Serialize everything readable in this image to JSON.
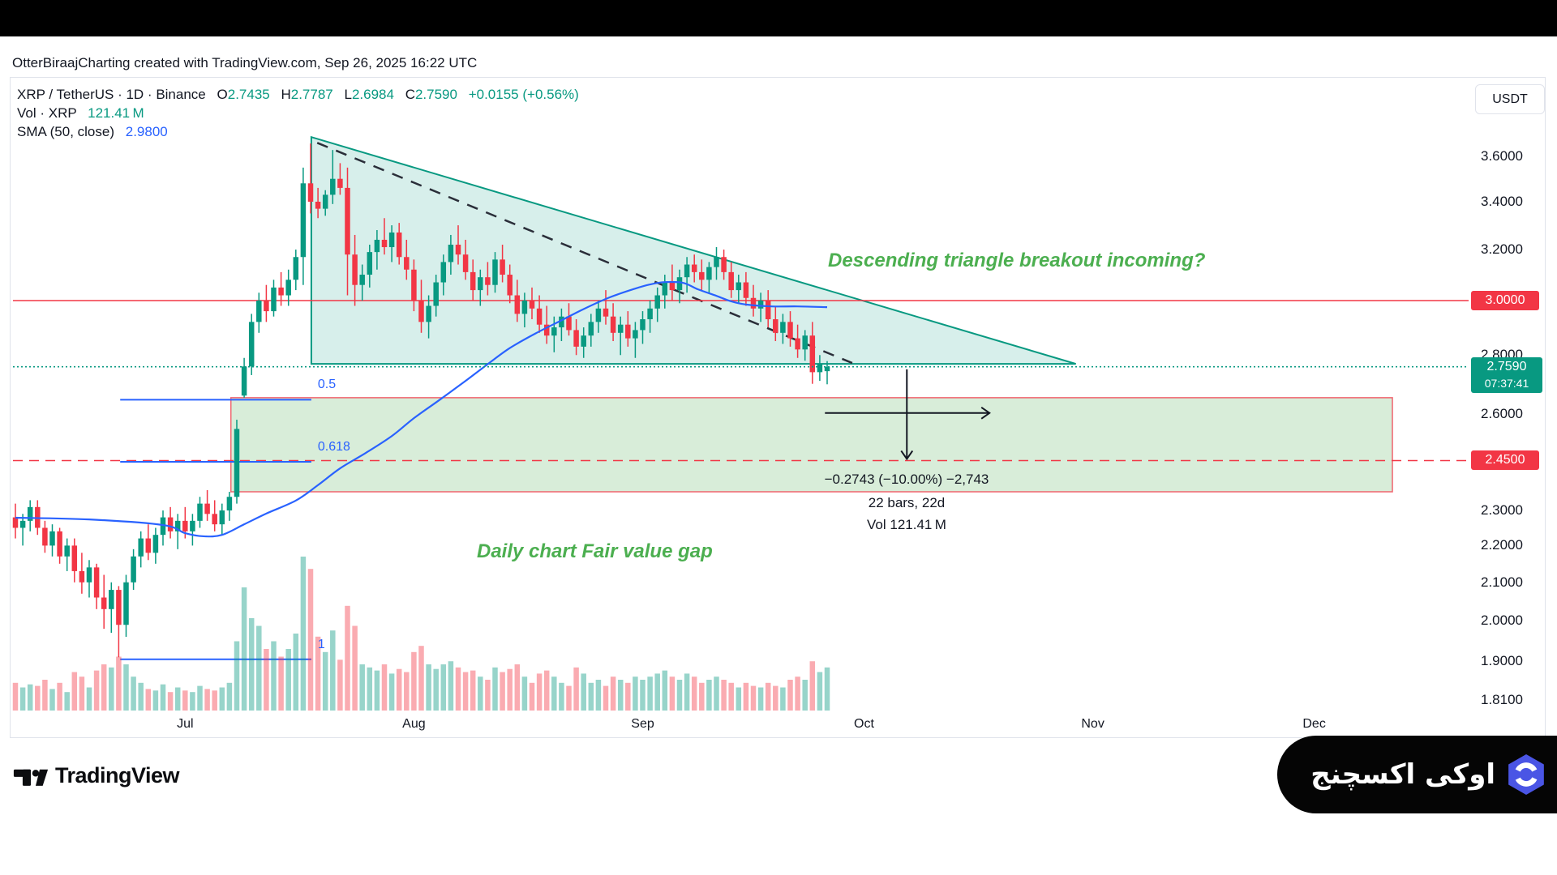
{
  "page": {
    "attribution": "OtterBiraajCharting created with TradingView.com, Sep 26, 2025 16:22 UTC"
  },
  "toolbar": {
    "currency_button": "USDT"
  },
  "legend": {
    "symbol": "XRP / TetherUS · 1D · Binance",
    "ohlc": [
      {
        "k": "O",
        "v": "2.7435"
      },
      {
        "k": "H",
        "v": "2.7787"
      },
      {
        "k": "L",
        "v": "2.6984"
      },
      {
        "k": "C",
        "v": "2.7590"
      }
    ],
    "change": "+0.0155 (+0.56%)",
    "vol_label": "Vol · XRP",
    "vol_value": "121.41 M",
    "sma_label": "SMA (50, close)",
    "sma_value": "2.9800"
  },
  "annotations": {
    "triangle_note": "Descending triangle breakout incoming?",
    "fvg_note": "Daily chart Fair value gap",
    "measure_line1": "−0.2743 (−10.00%) −2,743",
    "measure_line2": "22 bars, 22d",
    "measure_line3": "Vol 121.41 M"
  },
  "badges": {
    "resistance": "3.0000",
    "last_price": "2.7590",
    "countdown": "07:37:41",
    "target": "2.4500"
  },
  "branding": {
    "tradingview": "TradingView",
    "exchange_name": "اوکی اکسچنج"
  },
  "colors": {
    "up": "#089981",
    "down": "#f23645",
    "sma": "#2962ff",
    "fib": "#2962ff",
    "annotation_green": "#4caf50",
    "badge_red": "#f23645",
    "badge_green": "#089981",
    "dashed_trendline": "#2a2e39",
    "text": "#131722"
  },
  "chart_data": {
    "type": "candlestick",
    "symbol": "XRP/USDT",
    "timeframe": "1D",
    "y_axis": {
      "scale": "log",
      "tick_labels": [
        "3.6000",
        "3.4000",
        "3.2000",
        "2.8000",
        "2.6000",
        "2.3000",
        "2.2000",
        "2.1000",
        "2.0000",
        "1.9000",
        "1.8100"
      ]
    },
    "x_axis": {
      "months": [
        {
          "label": "Jul",
          "bar": 23
        },
        {
          "label": "Aug",
          "bar": 54
        },
        {
          "label": "Sep",
          "bar": 85
        },
        {
          "label": "Oct",
          "bar": 115
        },
        {
          "label": "Nov",
          "bar": 146
        },
        {
          "label": "Dec",
          "bar": 176
        }
      ]
    },
    "levels": {
      "resistance": 3.0,
      "target": 2.45,
      "last_close": 2.759
    },
    "fvg": {
      "top": 2.653,
      "bottom": 2.355,
      "bar_start": 29.2,
      "bar_end": 186.6
    },
    "triangle": {
      "apex_bar": 40.1,
      "apex_price": 3.69,
      "base_price": 2.769,
      "end_bar": 143.7
    },
    "trendline_dashed": {
      "from": [
        40.9,
        3.663
      ],
      "to": [
        113.4,
        2.772
      ]
    },
    "fib": {
      "bar_start": 14.2,
      "bar_end": 40.1,
      "levels": [
        {
          "label": "0.5",
          "price": 2.646
        },
        {
          "label": "0.618",
          "price": 2.446
        },
        {
          "label": "1",
          "price": 1.905
        }
      ]
    },
    "range_tool": {
      "vertical": {
        "bar": 120.8,
        "from_price": 2.75,
        "to_price": 2.455
      },
      "horizontal": {
        "price": 2.602,
        "from_bar": 109.7,
        "to_bar": 132
      }
    },
    "candles": [
      [
        2.28,
        2.32,
        2.22,
        2.25,
        0.18
      ],
      [
        2.25,
        2.29,
        2.2,
        2.27,
        0.15
      ],
      [
        2.27,
        2.33,
        2.24,
        2.31,
        0.17
      ],
      [
        2.31,
        2.33,
        2.23,
        2.25,
        0.16
      ],
      [
        2.25,
        2.27,
        2.18,
        2.2,
        0.2
      ],
      [
        2.2,
        2.26,
        2.17,
        2.24,
        0.14
      ],
      [
        2.24,
        2.25,
        2.15,
        2.17,
        0.18
      ],
      [
        2.17,
        2.22,
        2.13,
        2.2,
        0.12
      ],
      [
        2.2,
        2.22,
        2.1,
        2.13,
        0.25
      ],
      [
        2.13,
        2.18,
        2.07,
        2.1,
        0.22
      ],
      [
        2.1,
        2.16,
        2.06,
        2.14,
        0.15
      ],
      [
        2.14,
        2.15,
        2.03,
        2.06,
        0.26
      ],
      [
        2.06,
        2.12,
        1.98,
        2.03,
        0.3
      ],
      [
        2.03,
        2.1,
        1.97,
        2.08,
        0.28
      ],
      [
        2.08,
        2.09,
        1.91,
        1.99,
        0.35
      ],
      [
        1.99,
        2.12,
        1.96,
        2.1,
        0.3
      ],
      [
        2.1,
        2.19,
        2.08,
        2.17,
        0.22
      ],
      [
        2.17,
        2.24,
        2.14,
        2.22,
        0.18
      ],
      [
        2.22,
        2.26,
        2.16,
        2.18,
        0.14
      ],
      [
        2.18,
        2.25,
        2.15,
        2.23,
        0.13
      ],
      [
        2.23,
        2.3,
        2.2,
        2.28,
        0.17
      ],
      [
        2.28,
        2.31,
        2.22,
        2.24,
        0.12
      ],
      [
        2.24,
        2.29,
        2.19,
        2.27,
        0.15
      ],
      [
        2.27,
        2.31,
        2.22,
        2.24,
        0.13
      ],
      [
        2.24,
        2.29,
        2.2,
        2.27,
        0.12
      ],
      [
        2.27,
        2.34,
        2.25,
        2.32,
        0.16
      ],
      [
        2.32,
        2.36,
        2.27,
        2.29,
        0.14
      ],
      [
        2.29,
        2.33,
        2.24,
        2.26,
        0.13
      ],
      [
        2.26,
        2.32,
        2.23,
        2.3,
        0.15
      ],
      [
        2.3,
        2.355,
        2.27,
        2.34,
        0.18
      ],
      [
        2.34,
        2.58,
        2.32,
        2.55,
        0.45
      ],
      [
        2.66,
        2.79,
        2.653,
        2.76,
        0.8
      ],
      [
        2.76,
        2.95,
        2.73,
        2.92,
        0.6
      ],
      [
        2.92,
        3.03,
        2.88,
        3.0,
        0.55
      ],
      [
        3.0,
        3.06,
        2.92,
        2.96,
        0.4
      ],
      [
        2.96,
        3.08,
        2.94,
        3.05,
        0.45
      ],
      [
        3.05,
        3.11,
        2.98,
        3.02,
        0.35
      ],
      [
        3.02,
        3.12,
        2.98,
        3.08,
        0.4
      ],
      [
        3.08,
        3.2,
        3.04,
        3.17,
        0.5
      ],
      [
        3.17,
        3.55,
        3.06,
        3.48,
        1.0
      ],
      [
        3.48,
        3.66,
        3.35,
        3.4,
        0.92
      ],
      [
        3.4,
        3.46,
        3.33,
        3.37,
        0.48
      ],
      [
        3.37,
        3.45,
        3.34,
        3.43,
        0.38
      ],
      [
        3.43,
        3.63,
        3.39,
        3.5,
        0.52
      ],
      [
        3.5,
        3.57,
        3.43,
        3.46,
        0.33
      ],
      [
        3.46,
        3.55,
        3.02,
        3.18,
        0.68
      ],
      [
        3.18,
        3.26,
        2.98,
        3.06,
        0.55
      ],
      [
        3.06,
        3.14,
        3.0,
        3.1,
        0.3
      ],
      [
        3.1,
        3.22,
        3.05,
        3.19,
        0.28
      ],
      [
        3.19,
        3.28,
        3.12,
        3.24,
        0.26
      ],
      [
        3.24,
        3.33,
        3.18,
        3.21,
        0.3
      ],
      [
        3.21,
        3.3,
        3.15,
        3.27,
        0.24
      ],
      [
        3.27,
        3.31,
        3.14,
        3.17,
        0.27
      ],
      [
        3.17,
        3.24,
        3.08,
        3.12,
        0.25
      ],
      [
        3.12,
        3.16,
        2.96,
        3.0,
        0.38
      ],
      [
        3.0,
        3.08,
        2.88,
        2.92,
        0.42
      ],
      [
        2.92,
        3.02,
        2.86,
        2.98,
        0.3
      ],
      [
        2.98,
        3.1,
        2.94,
        3.07,
        0.27
      ],
      [
        3.07,
        3.18,
        3.02,
        3.15,
        0.3
      ],
      [
        3.15,
        3.26,
        3.1,
        3.22,
        0.32
      ],
      [
        3.22,
        3.3,
        3.14,
        3.18,
        0.28
      ],
      [
        3.18,
        3.24,
        3.08,
        3.11,
        0.25
      ],
      [
        3.11,
        3.16,
        3.0,
        3.04,
        0.26
      ],
      [
        3.04,
        3.12,
        2.98,
        3.09,
        0.22
      ],
      [
        3.09,
        3.15,
        3.02,
        3.06,
        0.2
      ],
      [
        3.06,
        3.19,
        3.03,
        3.16,
        0.28
      ],
      [
        3.16,
        3.22,
        3.07,
        3.1,
        0.25
      ],
      [
        3.1,
        3.14,
        2.99,
        3.02,
        0.27
      ],
      [
        3.02,
        3.08,
        2.92,
        2.95,
        0.3
      ],
      [
        2.95,
        3.03,
        2.9,
        3.0,
        0.22
      ],
      [
        3.0,
        3.05,
        2.93,
        2.97,
        0.18
      ],
      [
        2.97,
        3.02,
        2.88,
        2.91,
        0.24
      ],
      [
        2.91,
        2.98,
        2.84,
        2.87,
        0.26
      ],
      [
        2.87,
        2.94,
        2.81,
        2.9,
        0.22
      ],
      [
        2.9,
        2.97,
        2.85,
        2.94,
        0.18
      ],
      [
        2.94,
        2.99,
        2.87,
        2.89,
        0.16
      ],
      [
        2.89,
        2.93,
        2.8,
        2.83,
        0.28
      ],
      [
        2.83,
        2.9,
        2.79,
        2.87,
        0.24
      ],
      [
        2.87,
        2.95,
        2.83,
        2.92,
        0.18
      ],
      [
        2.92,
        3.0,
        2.88,
        2.97,
        0.2
      ],
      [
        2.97,
        3.04,
        2.91,
        2.94,
        0.16
      ],
      [
        2.94,
        2.99,
        2.85,
        2.88,
        0.22
      ],
      [
        2.88,
        2.94,
        2.8,
        2.91,
        0.2
      ],
      [
        2.91,
        2.96,
        2.83,
        2.86,
        0.18
      ],
      [
        2.86,
        2.92,
        2.79,
        2.89,
        0.22
      ],
      [
        2.89,
        2.96,
        2.84,
        2.93,
        0.2
      ],
      [
        2.93,
        3.0,
        2.88,
        2.97,
        0.22
      ],
      [
        2.97,
        3.05,
        2.92,
        3.02,
        0.24
      ],
      [
        3.02,
        3.1,
        2.97,
        3.07,
        0.26
      ],
      [
        3.07,
        3.14,
        3.0,
        3.04,
        0.22
      ],
      [
        3.04,
        3.12,
        2.99,
        3.09,
        0.2
      ],
      [
        3.09,
        3.17,
        3.03,
        3.14,
        0.24
      ],
      [
        3.14,
        3.18,
        3.07,
        3.11,
        0.22
      ],
      [
        3.11,
        3.16,
        3.04,
        3.08,
        0.18
      ],
      [
        3.08,
        3.15,
        3.03,
        3.13,
        0.2
      ],
      [
        3.13,
        3.21,
        3.08,
        3.17,
        0.22
      ],
      [
        3.17,
        3.2,
        3.08,
        3.11,
        0.2
      ],
      [
        3.11,
        3.15,
        3.01,
        3.04,
        0.18
      ],
      [
        3.04,
        3.1,
        2.99,
        3.07,
        0.15
      ],
      [
        3.07,
        3.11,
        2.98,
        3.01,
        0.18
      ],
      [
        3.01,
        3.06,
        2.94,
        2.97,
        0.16
      ],
      [
        2.97,
        3.03,
        2.92,
        3.0,
        0.15
      ],
      [
        3.0,
        3.04,
        2.9,
        2.93,
        0.18
      ],
      [
        2.93,
        2.98,
        2.85,
        2.88,
        0.16
      ],
      [
        2.88,
        2.95,
        2.84,
        2.92,
        0.15
      ],
      [
        2.92,
        2.96,
        2.83,
        2.86,
        0.2
      ],
      [
        2.86,
        2.91,
        2.79,
        2.82,
        0.22
      ],
      [
        2.82,
        2.89,
        2.78,
        2.87,
        0.2
      ],
      [
        2.87,
        2.92,
        2.7,
        2.74,
        0.32
      ],
      [
        2.74,
        2.8,
        2.71,
        2.77,
        0.25
      ],
      [
        2.7435,
        2.7787,
        2.6984,
        2.759,
        0.28
      ]
    ],
    "sma50": [
      [
        0,
        2.279
      ],
      [
        10,
        2.274
      ],
      [
        20,
        2.258
      ],
      [
        23,
        2.235
      ],
      [
        25.5,
        2.226
      ],
      [
        28,
        2.23
      ],
      [
        31,
        2.26
      ],
      [
        34,
        2.291
      ],
      [
        38,
        2.329
      ],
      [
        41,
        2.375
      ],
      [
        44,
        2.426
      ],
      [
        47.5,
        2.474
      ],
      [
        51,
        2.527
      ],
      [
        54,
        2.585
      ],
      [
        57.5,
        2.646
      ],
      [
        61,
        2.71
      ],
      [
        64,
        2.768
      ],
      [
        67,
        2.825
      ],
      [
        70.5,
        2.878
      ],
      [
        74,
        2.926
      ],
      [
        77,
        2.968
      ],
      [
        80.5,
        3.012
      ],
      [
        84,
        3.046
      ],
      [
        86,
        3.062
      ],
      [
        88,
        3.071
      ],
      [
        90.5,
        3.068
      ],
      [
        92.5,
        3.043
      ],
      [
        95,
        3.018
      ],
      [
        97,
        2.997
      ],
      [
        99,
        2.985
      ],
      [
        102.5,
        2.978
      ],
      [
        106,
        2.978
      ],
      [
        110,
        2.975
      ]
    ]
  }
}
